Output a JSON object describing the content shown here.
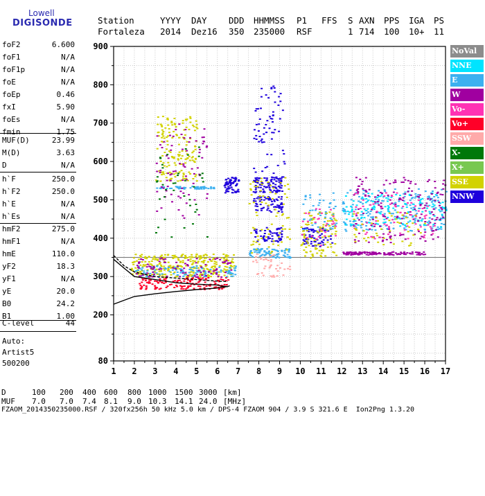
{
  "logo": {
    "line1": "Lowell",
    "line2": "DIGISONDE"
  },
  "header": {
    "row1": [
      "Station",
      "YYYY",
      "DAY",
      "DDD",
      "HHMMSS",
      "P1",
      "FFS",
      "S",
      "AXN",
      "PPS",
      "IGA",
      "PS"
    ],
    "row2": [
      "Fortaleza",
      "2014",
      "Dez16",
      "350",
      "235000",
      "RSF",
      "",
      "1",
      "714",
      "100",
      "10+",
      "11"
    ]
  },
  "params": [
    {
      "name": "foF2",
      "value": "6.600"
    },
    {
      "name": "foF1",
      "value": "N/A"
    },
    {
      "name": "foF1p",
      "value": "N/A"
    },
    {
      "name": "foE",
      "value": "N/A"
    },
    {
      "name": "foEp",
      "value": "0.46"
    },
    {
      "name": "fxI",
      "value": "5.90"
    },
    {
      "name": "foEs",
      "value": "N/A"
    },
    {
      "name": "fmin",
      "value": "1.75"
    },
    {
      "name": "MUF(D)",
      "value": "23.99"
    },
    {
      "name": "M(D)",
      "value": "3.63"
    },
    {
      "name": "D",
      "value": "N/A"
    },
    {
      "name": "h`F",
      "value": "250.0"
    },
    {
      "name": "h`F2",
      "value": "250.0"
    },
    {
      "name": "h`E",
      "value": "N/A"
    },
    {
      "name": "h`Es",
      "value": "N/A"
    },
    {
      "name": "hmF2",
      "value": "275.0"
    },
    {
      "name": "hmF1",
      "value": "N/A"
    },
    {
      "name": "hmE",
      "value": "110.0"
    },
    {
      "name": "yF2",
      "value": "18.3"
    },
    {
      "name": "yF1",
      "value": "N/A"
    },
    {
      "name": "yE",
      "value": "20.0"
    },
    {
      "name": "B0",
      "value": "24.2"
    },
    {
      "name": "B1",
      "value": "1.00"
    },
    {
      "name": "C-level",
      "value": "44"
    }
  ],
  "auto": {
    "line1": "Auto:",
    "line2": "Artist5",
    "line3": "500200"
  },
  "legend": [
    {
      "label": "NoVal",
      "color": "#8c8c8c",
      "text_color": "#ffffff"
    },
    {
      "label": "NNE",
      "color": "#00e4ff",
      "text_color": "#ffffff"
    },
    {
      "label": "E",
      "color": "#3cb0f0",
      "text_color": "#ffffff"
    },
    {
      "label": "W",
      "color": "#a000a0",
      "text_color": "#ffffff"
    },
    {
      "label": "Vo-",
      "color": "#ff32b4",
      "text_color": "#ffffff"
    },
    {
      "label": "Vo+",
      "color": "#ff0028",
      "text_color": "#ffffff"
    },
    {
      "label": "SSW",
      "color": "#ffaaaa",
      "text_color": "#ffffff"
    },
    {
      "label": "X-",
      "color": "#00780a",
      "text_color": "#ffffff"
    },
    {
      "label": "X+",
      "color": "#78c850",
      "text_color": "#ffffff"
    },
    {
      "label": "SSE",
      "color": "#d2d200",
      "text_color": "#ffffff"
    },
    {
      "label": "NNW",
      "color": "#1e00dc",
      "text_color": "#ffffff"
    }
  ],
  "footer": {
    "row1": [
      "D",
      "100",
      "200",
      "400",
      "600",
      "800",
      "1000",
      "1500",
      "3000",
      "[km]"
    ],
    "row2": [
      "MUF",
      "7.0",
      "7.0",
      "7.4",
      "8.1",
      "9.0",
      "10.3",
      "14.1",
      "24.0",
      "[MHz]"
    ],
    "row3": "FZAOM_2014350235000.RSF / 320fx256h 50 kHz 5.0 km / DPS-4 FZAOM 904 / 3.9 S 321.6 E  Ion2Png 1.3.20"
  },
  "chart_data": {
    "type": "scatter",
    "xlim": [
      1,
      17
    ],
    "ylim": [
      80,
      900
    ],
    "xticks": [
      "1",
      "2",
      "3",
      "4",
      "5",
      "6",
      "7",
      "8",
      "9",
      "10",
      "11",
      "12",
      "13",
      "14",
      "15",
      "16",
      "17"
    ],
    "yticks": [
      "80",
      "200",
      "300",
      "400",
      "500",
      "600",
      "700",
      "800",
      "900"
    ],
    "grid": true,
    "reference_line_km": 350,
    "traces": {
      "o_trace": {
        "x": [
          1.0,
          1.5,
          2.0,
          3.0,
          4.0,
          5.0,
          5.5,
          6.0,
          6.5
        ],
        "y": [
          355,
          328,
          312,
          300,
          296,
          292,
          290,
          288,
          287
        ]
      },
      "virtual_height": {
        "x": [
          1.0,
          1.5,
          2.0,
          3.0,
          4.0,
          5.0,
          6.0,
          6.2,
          6.5
        ],
        "y": [
          345,
          322,
          300,
          292,
          284,
          280,
          278,
          275,
          274
        ]
      },
      "lower_profile": {
        "x": [
          1.0,
          1.5,
          2.0,
          3.0,
          4.0,
          5.0,
          6.0,
          6.5,
          6.6
        ],
        "y": [
          228,
          238,
          248,
          255,
          261,
          266,
          270,
          274,
          276
        ]
      }
    },
    "echo_clusters": [
      {
        "color": "#d2d200",
        "x": [
          1.8,
          6.8
        ],
        "y": [
          300,
          360
        ],
        "n": 320
      },
      {
        "color": "#ff0028",
        "x": [
          2.2,
          6.5
        ],
        "y": [
          268,
          300
        ],
        "n": 140
      },
      {
        "color": "#3cb0f0",
        "x": [
          2.0,
          7.0
        ],
        "y": [
          300,
          330
        ],
        "n": 110
      },
      {
        "color": "#a000a0",
        "x": [
          2.0,
          6.7
        ],
        "y": [
          300,
          350
        ],
        "n": 90
      },
      {
        "color": "#3cb0f0",
        "x": [
          3.0,
          5.8
        ],
        "y": [
          530,
          537
        ],
        "n": 60
      },
      {
        "color": "#d2d200",
        "x": [
          3.0,
          5.0
        ],
        "y": [
          550,
          720
        ],
        "n": 160
      },
      {
        "color": "#a000a0",
        "x": [
          3.0,
          5.5
        ],
        "y": [
          450,
          700
        ],
        "n": 80
      },
      {
        "color": "#00780a",
        "x": [
          3.0,
          5.5
        ],
        "y": [
          380,
          650
        ],
        "n": 40
      },
      {
        "color": "#1e00dc",
        "x": [
          6.3,
          7.0
        ],
        "y": [
          520,
          560
        ],
        "n": 70
      },
      {
        "color": "#1e00dc",
        "x": [
          7.7,
          9.1
        ],
        "y": [
          520,
          560
        ],
        "n": 90
      },
      {
        "color": "#1e00dc",
        "x": [
          7.7,
          9.1
        ],
        "y": [
          470,
          510
        ],
        "n": 70
      },
      {
        "color": "#1e00dc",
        "x": [
          7.7,
          9.1
        ],
        "y": [
          390,
          430
        ],
        "n": 60
      },
      {
        "color": "#3cb0f0",
        "x": [
          7.5,
          9.5
        ],
        "y": [
          350,
          375
        ],
        "n": 90
      },
      {
        "color": "#1e00dc",
        "x": [
          7.7,
          9.2
        ],
        "y": [
          560,
          800
        ],
        "n": 70
      },
      {
        "color": "#ffaaaa",
        "x": [
          7.5,
          9.5
        ],
        "y": [
          300,
          360
        ],
        "n": 40
      },
      {
        "color": "#d2d200",
        "x": [
          7.5,
          9.5
        ],
        "y": [
          360,
          560
        ],
        "n": 80
      },
      {
        "color": "#1e00dc",
        "x": [
          10.0,
          11.5
        ],
        "y": [
          380,
          430
        ],
        "n": 70
      },
      {
        "color": "#d2d200",
        "x": [
          10.0,
          11.7
        ],
        "y": [
          350,
          470
        ],
        "n": 110
      },
      {
        "color": "#3cb0f0",
        "x": [
          10.0,
          11.7
        ],
        "y": [
          420,
          520
        ],
        "n": 50
      },
      {
        "color": "#ff32b4",
        "x": [
          10.0,
          11.7
        ],
        "y": [
          380,
          480
        ],
        "n": 30
      },
      {
        "color": "#a000a0",
        "x": [
          12.0,
          16.0
        ],
        "y": [
          358,
          366
        ],
        "n": 120
      },
      {
        "color": "#3cb0f0",
        "x": [
          12.0,
          17.0
        ],
        "y": [
          420,
          530
        ],
        "n": 230
      },
      {
        "color": "#00e4ff",
        "x": [
          12.0,
          17.0
        ],
        "y": [
          430,
          520
        ],
        "n": 120
      },
      {
        "color": "#a000a0",
        "x": [
          12.5,
          17.0
        ],
        "y": [
          390,
          560
        ],
        "n": 170
      },
      {
        "color": "#ff32b4",
        "x": [
          12.5,
          16.5
        ],
        "y": [
          400,
          520
        ],
        "n": 70
      },
      {
        "color": "#d2d200",
        "x": [
          12.5,
          16.0
        ],
        "y": [
          380,
          470
        ],
        "n": 50
      }
    ]
  }
}
